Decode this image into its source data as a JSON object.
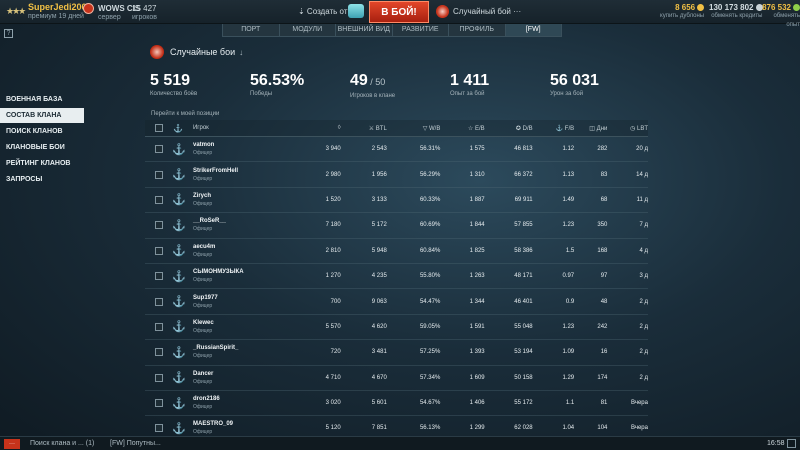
{
  "topbar": {
    "username": "SuperJedi2009",
    "premium": "премиум 19 дней",
    "server": "WOWS CIS",
    "server_sub": "сервер",
    "players_count": "15 427",
    "players_label": "игроков",
    "create_squad": "⇣ Создать отряд",
    "battle_button": "В БОЙ!",
    "battle_mode": "Случайный бой ···",
    "doubloons": "8 656",
    "doubloons_label": "купить дублоны",
    "credits": "130 173 802",
    "credits_label": "обменять кредиты",
    "free_xp": "876 532",
    "free_xp_label": "обменять опыт"
  },
  "nav_tabs": [
    "ПОРТ",
    "МОДУЛИ",
    "ВНЕШНИЙ ВИД",
    "РАЗВИТИЕ",
    "ПРОФИЛЬ",
    "[FW]"
  ],
  "left_menu": [
    "ВОЕННАЯ БАЗА",
    "СОСТАВ КЛАНА",
    "ПОИСК КЛАНОВ",
    "КЛАНОВЫЕ БОИ",
    "РЕЙТИНГ КЛАНОВ",
    "ЗАПРОСЫ"
  ],
  "header": {
    "mode_label": "Случайные бои",
    "stats": [
      {
        "value": "5 519",
        "label": "Количество боёв"
      },
      {
        "value": "56.53%",
        "label": "Победы"
      },
      {
        "value": "49",
        "value_small": " / 50",
        "label": "Игроков в клане"
      },
      {
        "value": "1 411",
        "label": "Опыт за бой"
      },
      {
        "value": "56 031",
        "label": "Урон за бой"
      }
    ],
    "jump_link": "Перейти к моей позиции"
  },
  "table": {
    "columns": [
      "Игрок",
      "◊",
      "⚔ BTL",
      "▽ W/B",
      "☆ E/B",
      "✪ D/B",
      "⚓ F/B",
      "◫ Дни",
      "◷ LBT"
    ],
    "rows": [
      {
        "name": "vatmon",
        "role": "Офицер",
        "c1": "3 940",
        "btl": "2 543",
        "wb": "56.31%",
        "eb": "1 575",
        "db": "46 813",
        "fb": "1.12",
        "days": "282",
        "lbt": "20 д"
      },
      {
        "name": "StrikerFromHell",
        "role": "Офицер",
        "c1": "2 980",
        "btl": "1 956",
        "wb": "56.29%",
        "eb": "1 310",
        "db": "66 372",
        "fb": "1.13",
        "days": "83",
        "lbt": "14 д"
      },
      {
        "name": "Zirych",
        "role": "Офицер",
        "c1": "1 520",
        "btl": "3 133",
        "wb": "60.33%",
        "eb": "1 887",
        "db": "69 911",
        "fb": "1.49",
        "days": "68",
        "lbt": "11 д"
      },
      {
        "name": "__RoSeR__",
        "role": "Офицер",
        "c1": "7 180",
        "btl": "5 172",
        "wb": "60.69%",
        "eb": "1 844",
        "db": "57 855",
        "fb": "1.23",
        "days": "350",
        "lbt": "7 д"
      },
      {
        "name": "aecu4m",
        "role": "Офицер",
        "c1": "2 810",
        "btl": "5 948",
        "wb": "60.84%",
        "eb": "1 825",
        "db": "58 386",
        "fb": "1.5",
        "days": "168",
        "lbt": "4 д"
      },
      {
        "name": "СЫМОНМУЗЫКА",
        "role": "Офицер",
        "c1": "1 270",
        "btl": "4 235",
        "wb": "55.80%",
        "eb": "1 263",
        "db": "48 171",
        "fb": "0.97",
        "days": "97",
        "lbt": "3 д"
      },
      {
        "name": "Sup1977",
        "role": "Офицер",
        "c1": "700",
        "btl": "9 063",
        "wb": "54.47%",
        "eb": "1 344",
        "db": "46 401",
        "fb": "0.9",
        "days": "48",
        "lbt": "2 д"
      },
      {
        "name": "Klewec",
        "role": "Офицер",
        "c1": "5 570",
        "btl": "4 620",
        "wb": "59.05%",
        "eb": "1 591",
        "db": "55 048",
        "fb": "1.23",
        "days": "242",
        "lbt": "2 д"
      },
      {
        "name": "_RussianSpirit_",
        "role": "Офицер",
        "c1": "720",
        "btl": "3 481",
        "wb": "57.25%",
        "eb": "1 393",
        "db": "53 194",
        "fb": "1.09",
        "days": "16",
        "lbt": "2 д"
      },
      {
        "name": "Dancer",
        "role": "Офицер",
        "c1": "4 710",
        "btl": "4 670",
        "wb": "57.34%",
        "eb": "1 609",
        "db": "50 158",
        "fb": "1.29",
        "days": "174",
        "lbt": "2 д"
      },
      {
        "name": "dron2186",
        "role": "Офицер",
        "c1": "3 020",
        "btl": "5 601",
        "wb": "54.67%",
        "eb": "1 406",
        "db": "55 172",
        "fb": "1.1",
        "days": "81",
        "lbt": "Вчера"
      },
      {
        "name": "MAESTRO_09",
        "role": "Офицер",
        "c1": "5 120",
        "btl": "7 851",
        "wb": "56.13%",
        "eb": "1 299",
        "db": "62 028",
        "fb": "1.04",
        "days": "104",
        "lbt": "Вчера"
      }
    ]
  },
  "footer": {
    "menu": "···",
    "chat1": "Поиск клана и ...  (1)",
    "chat2": "[FW] Попутны...",
    "clock": "16:58"
  },
  "colors": {
    "battle": "#c7331b",
    "doubloons": "#f1c045",
    "credits": "#d5dfe4",
    "free_xp": "#f1c045"
  }
}
